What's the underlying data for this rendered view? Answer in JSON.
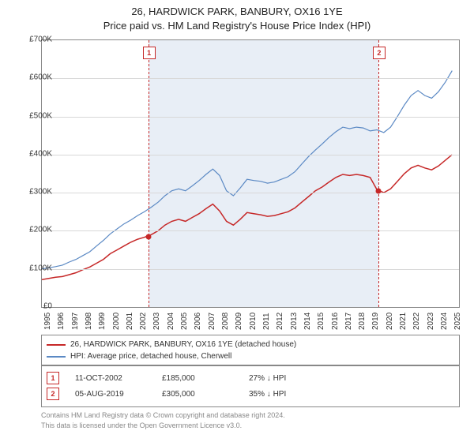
{
  "title": {
    "line1": "26, HARDWICK PARK, BANBURY, OX16 1YE",
    "line2": "Price paid vs. HM Land Registry's House Price Index (HPI)"
  },
  "chart": {
    "type": "line",
    "background_color": "#ffffff",
    "shaded_color": "#e8eef6",
    "grid_color": "#d8d8d8",
    "border_color": "#888888",
    "x_domain": [
      1995,
      2025.5
    ],
    "y_domain": [
      0,
      700000
    ],
    "y_ticks": [
      0,
      100000,
      200000,
      300000,
      400000,
      500000,
      600000,
      700000
    ],
    "y_tick_labels": [
      "£0",
      "£100K",
      "£200K",
      "£300K",
      "£400K",
      "£500K",
      "£600K",
      "£700K"
    ],
    "x_ticks": [
      1995,
      1996,
      1997,
      1998,
      1999,
      2000,
      2001,
      2002,
      2003,
      2004,
      2005,
      2006,
      2007,
      2008,
      2009,
      2010,
      2011,
      2012,
      2013,
      2014,
      2015,
      2016,
      2017,
      2018,
      2019,
      2020,
      2021,
      2022,
      2023,
      2024,
      2025
    ],
    "shaded_region": {
      "start": 2002.8,
      "end": 2019.6
    },
    "markers": [
      {
        "num": "1",
        "x": 2002.78,
        "date": "11-OCT-2002",
        "price": "£185,000",
        "delta": "27% ↓ HPI",
        "y_val": 185000
      },
      {
        "num": "2",
        "x": 2019.6,
        "date": "05-AUG-2019",
        "price": "£305,000",
        "delta": "35% ↓ HPI",
        "y_val": 305000
      }
    ],
    "series": [
      {
        "name": "property",
        "label": "26, HARDWICK PARK, BANBURY, OX16 1YE (detached house)",
        "color": "#c62828",
        "width": 1.5,
        "points": [
          [
            1995,
            72000
          ],
          [
            1995.5,
            75000
          ],
          [
            1996,
            78000
          ],
          [
            1996.5,
            80000
          ],
          [
            1997,
            85000
          ],
          [
            1997.5,
            90000
          ],
          [
            1998,
            98000
          ],
          [
            1998.5,
            105000
          ],
          [
            1999,
            115000
          ],
          [
            1999.5,
            125000
          ],
          [
            2000,
            140000
          ],
          [
            2000.5,
            150000
          ],
          [
            2001,
            160000
          ],
          [
            2001.5,
            170000
          ],
          [
            2002,
            178000
          ],
          [
            2002.5,
            183000
          ],
          [
            2003,
            190000
          ],
          [
            2003.5,
            200000
          ],
          [
            2004,
            215000
          ],
          [
            2004.5,
            225000
          ],
          [
            2005,
            230000
          ],
          [
            2005.5,
            225000
          ],
          [
            2006,
            235000
          ],
          [
            2006.5,
            245000
          ],
          [
            2007,
            258000
          ],
          [
            2007.5,
            270000
          ],
          [
            2008,
            252000
          ],
          [
            2008.5,
            225000
          ],
          [
            2009,
            215000
          ],
          [
            2009.5,
            230000
          ],
          [
            2010,
            248000
          ],
          [
            2010.5,
            245000
          ],
          [
            2011,
            242000
          ],
          [
            2011.5,
            238000
          ],
          [
            2012,
            240000
          ],
          [
            2012.5,
            245000
          ],
          [
            2013,
            250000
          ],
          [
            2013.5,
            260000
          ],
          [
            2014,
            275000
          ],
          [
            2014.5,
            290000
          ],
          [
            2015,
            305000
          ],
          [
            2015.5,
            315000
          ],
          [
            2016,
            328000
          ],
          [
            2016.5,
            340000
          ],
          [
            2017,
            348000
          ],
          [
            2017.5,
            345000
          ],
          [
            2018,
            348000
          ],
          [
            2018.5,
            345000
          ],
          [
            2019,
            340000
          ],
          [
            2019.5,
            308000
          ],
          [
            2020,
            300000
          ],
          [
            2020.5,
            310000
          ],
          [
            2021,
            330000
          ],
          [
            2021.5,
            350000
          ],
          [
            2022,
            365000
          ],
          [
            2022.5,
            372000
          ],
          [
            2023,
            365000
          ],
          [
            2023.5,
            360000
          ],
          [
            2024,
            370000
          ],
          [
            2024.5,
            385000
          ],
          [
            2025,
            400000
          ]
        ]
      },
      {
        "name": "hpi",
        "label": "HPI: Average price, detached house, Cherwell",
        "color": "#5b89c4",
        "width": 1.2,
        "points": [
          [
            1995,
            100000
          ],
          [
            1995.5,
            103000
          ],
          [
            1996,
            106000
          ],
          [
            1996.5,
            110000
          ],
          [
            1997,
            118000
          ],
          [
            1997.5,
            125000
          ],
          [
            1998,
            135000
          ],
          [
            1998.5,
            145000
          ],
          [
            1999,
            160000
          ],
          [
            1999.5,
            175000
          ],
          [
            2000,
            192000
          ],
          [
            2000.5,
            205000
          ],
          [
            2001,
            218000
          ],
          [
            2001.5,
            228000
          ],
          [
            2002,
            240000
          ],
          [
            2002.5,
            250000
          ],
          [
            2003,
            262000
          ],
          [
            2003.5,
            275000
          ],
          [
            2004,
            292000
          ],
          [
            2004.5,
            305000
          ],
          [
            2005,
            310000
          ],
          [
            2005.5,
            305000
          ],
          [
            2006,
            318000
          ],
          [
            2006.5,
            332000
          ],
          [
            2007,
            348000
          ],
          [
            2007.5,
            362000
          ],
          [
            2008,
            345000
          ],
          [
            2008.5,
            305000
          ],
          [
            2009,
            292000
          ],
          [
            2009.5,
            312000
          ],
          [
            2010,
            335000
          ],
          [
            2010.5,
            332000
          ],
          [
            2011,
            330000
          ],
          [
            2011.5,
            325000
          ],
          [
            2012,
            328000
          ],
          [
            2012.5,
            335000
          ],
          [
            2013,
            342000
          ],
          [
            2013.5,
            355000
          ],
          [
            2014,
            375000
          ],
          [
            2014.5,
            395000
          ],
          [
            2015,
            412000
          ],
          [
            2015.5,
            428000
          ],
          [
            2016,
            445000
          ],
          [
            2016.5,
            460000
          ],
          [
            2017,
            472000
          ],
          [
            2017.5,
            468000
          ],
          [
            2018,
            472000
          ],
          [
            2018.5,
            470000
          ],
          [
            2019,
            462000
          ],
          [
            2019.5,
            465000
          ],
          [
            2020,
            458000
          ],
          [
            2020.5,
            472000
          ],
          [
            2021,
            500000
          ],
          [
            2021.5,
            530000
          ],
          [
            2022,
            555000
          ],
          [
            2022.5,
            568000
          ],
          [
            2023,
            555000
          ],
          [
            2023.5,
            548000
          ],
          [
            2024,
            565000
          ],
          [
            2024.5,
            590000
          ],
          [
            2025,
            620000
          ]
        ]
      }
    ]
  },
  "legend": {
    "items": [
      {
        "color": "#c62828",
        "label": "26, HARDWICK PARK, BANBURY, OX16 1YE (detached house)"
      },
      {
        "color": "#5b89c4",
        "label": "HPI: Average price, detached house, Cherwell"
      }
    ]
  },
  "copyright": {
    "line1": "Contains HM Land Registry data © Crown copyright and database right 2024.",
    "line2": "This data is licensed under the Open Government Licence v3.0."
  }
}
